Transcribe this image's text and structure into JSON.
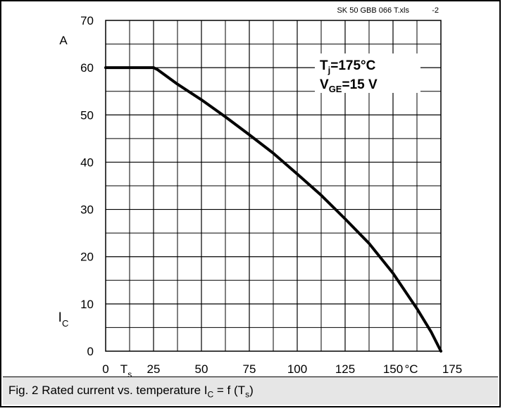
{
  "file_label": "SK 50 GBB 066 T.xls",
  "page_label": "-2",
  "caption": {
    "prefix": "Fig. 2 Rated current vs. temperature I",
    "sub1": "C",
    "middle": " = f (T",
    "sub2": "s",
    "suffix": ")"
  },
  "chart_data": {
    "type": "line",
    "title": "",
    "xlim": [
      0,
      175
    ],
    "ylim": [
      0,
      70
    ],
    "x_ticks": [
      0,
      25,
      50,
      75,
      100,
      125,
      150,
      175
    ],
    "x_tick_labels": [
      "0",
      "25",
      "50",
      "75",
      "100",
      "125",
      "150",
      "175"
    ],
    "y_ticks": [
      0,
      10,
      20,
      30,
      40,
      50,
      60,
      70
    ],
    "y_tick_labels": [
      "0",
      "10",
      "20",
      "30",
      "40",
      "50",
      "60",
      "70"
    ],
    "x_minor_step": 12.5,
    "y_minor_step": 5,
    "xlabel": {
      "main": "T",
      "sub": "s",
      "unit": "°C"
    },
    "ylabel": {
      "main": "I",
      "sub": "C",
      "unit": "A"
    },
    "annotation": {
      "line1_main": "T",
      "line1_sub": "j",
      "line1_rest": "=175°C",
      "line2_main": "V",
      "line2_sub": "GE",
      "line2_rest": "=15 V"
    },
    "grid": true,
    "series": [
      {
        "x": [
          0,
          25,
          27,
          37.5,
          50,
          62.5,
          75,
          87.5,
          100,
          112.5,
          125,
          137.5,
          150,
          162.5,
          170,
          175
        ],
        "y": [
          60,
          60,
          59.6,
          56.5,
          53.2,
          49.6,
          45.8,
          41.9,
          37.5,
          33,
          28,
          22.8,
          16.5,
          9,
          4,
          0
        ]
      }
    ]
  }
}
